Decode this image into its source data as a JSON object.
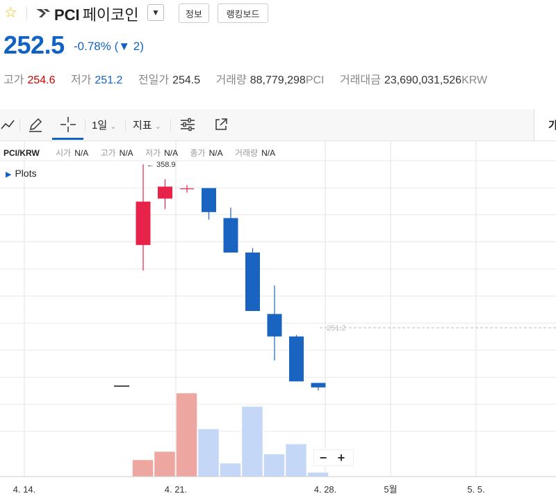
{
  "header": {
    "pair_symbol": "PCI",
    "name_kr": "페이코인",
    "tabs": [
      {
        "label": "정보"
      },
      {
        "label": "랭킹보드"
      }
    ],
    "price": "252.5",
    "change": "-0.78% (▼ 2)",
    "stats": {
      "high_label": "고가",
      "high": "254.6",
      "low_label": "저가",
      "low": "251.2",
      "prev_label": "전일가",
      "prev": "254.5",
      "vol_label": "거래량",
      "vol": "88,779,298",
      "vol_unit": "PCI",
      "amt_label": "거래대금",
      "amt": "23,690,031,526",
      "amt_unit": "KRW"
    }
  },
  "toolbar": {
    "interval": "1일",
    "indicator": "지표",
    "right_label": "가"
  },
  "legend": {
    "pair": "PCI/KRW",
    "items": [
      {
        "label": "시가",
        "value": "N/A"
      },
      {
        "label": "고가",
        "value": "N/A"
      },
      {
        "label": "저가",
        "value": "N/A"
      },
      {
        "label": "종가",
        "value": "N/A"
      },
      {
        "label": "거래량",
        "value": "N/A"
      }
    ]
  },
  "plots_label": "Plots",
  "colors": {
    "up": "#e8234a",
    "down": "#1864c0",
    "vol_up": "#eda6a0",
    "vol_down": "#c4d7f7"
  },
  "chart_data": {
    "type": "candlestick",
    "x_ticks": [
      "4. 14.",
      "4. 21.",
      "4. 28.",
      "5월",
      "5. 5."
    ],
    "high_annotation": "← 358.9",
    "last_price_tag": "251.2",
    "candles": [
      {
        "date": "4.19",
        "open": 305,
        "close": 334,
        "high": 358.9,
        "low": 288,
        "vol": 20
      },
      {
        "date": "4.20",
        "open": 336,
        "close": 344,
        "high": 349,
        "low": 329,
        "vol": 30
      },
      {
        "date": "4.21",
        "open": 342.5,
        "close": 342.5,
        "high": 345,
        "low": 340,
        "vol": 100
      },
      {
        "date": "4.22",
        "open": 343,
        "close": 327,
        "high": 343,
        "low": 322,
        "vol": 57
      },
      {
        "date": "4.23",
        "open": 323,
        "close": 300,
        "high": 330,
        "low": 300,
        "vol": 16
      },
      {
        "date": "4.24",
        "open": 300,
        "close": 261,
        "high": 303,
        "low": 261,
        "vol": 84
      },
      {
        "date": "4.25",
        "open": 259,
        "close": 244,
        "high": 278,
        "low": 228,
        "vol": 27
      },
      {
        "date": "4.26",
        "open": 244,
        "close": 214,
        "high": 245,
        "low": 214,
        "vol": 39
      },
      {
        "date": "4.27",
        "open": 213,
        "close": 210,
        "high": 213,
        "low": 208,
        "vol": 5
      }
    ]
  }
}
